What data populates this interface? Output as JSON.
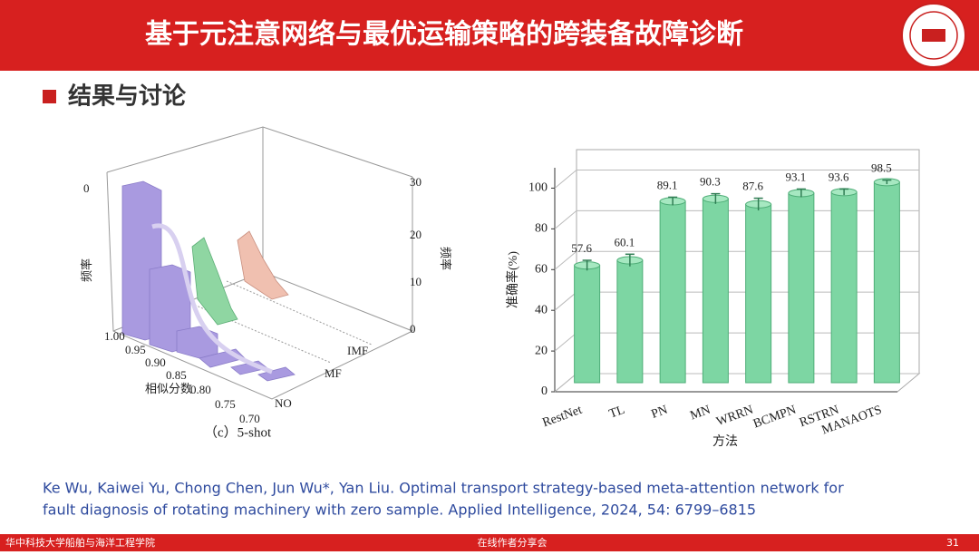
{
  "header": {
    "title": "基于元注意网络与最优运输策略的跨装备故障诊断"
  },
  "section": {
    "title": "结果与讨论"
  },
  "figure_left": {
    "left_tick": "0",
    "left_axis_label": "频率",
    "right_ticks": [
      "30",
      "20",
      "10",
      "0"
    ],
    "right_axis_label": "频率",
    "similarity_ticks": [
      "1.00",
      "0.95",
      "0.90",
      "0.85",
      "0.80",
      "0.75",
      "0.70"
    ],
    "similarity_label": "相似分数",
    "groups": [
      "NO",
      "MF",
      "IMF"
    ],
    "caption": "（c）5-shot"
  },
  "chart_data": {
    "type": "bar",
    "xlabel": "方法",
    "ylabel": "准确率(%)",
    "categories": [
      "RestNet",
      "TL",
      "PN",
      "MN",
      "WRRN",
      "BCMPN",
      "RSTRN",
      "MANAOTS"
    ],
    "values": [
      57.6,
      60.1,
      89.1,
      90.3,
      87.6,
      93.1,
      93.6,
      98.5
    ],
    "errors": [
      2.5,
      3,
      2,
      2.5,
      3,
      2,
      1.5,
      1
    ],
    "color": "#7dd6a3",
    "ylim": [
      0,
      110
    ],
    "yticks": [
      0,
      20,
      40,
      60,
      80,
      100
    ],
    "grid": true
  },
  "citation": {
    "lines": [
      "Ke Wu, Kaiwei Yu, Chong Chen, Jun Wu*, Yan Liu. Optimal transport strategy-based meta-attention network for",
      "fault diagnosis of rotating machinery with zero sample. Applied Intelligence, 2024, 54: 6799–6815"
    ]
  },
  "footer": {
    "left": "华中科技大学船舶与海洋工程学院",
    "center": "在线作者分享会",
    "page": "31"
  }
}
